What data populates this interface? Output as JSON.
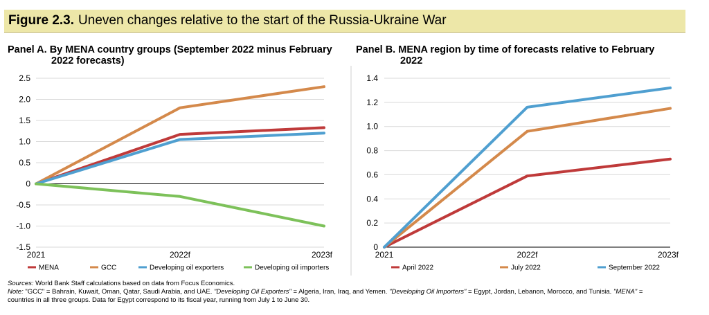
{
  "figure": {
    "label": "Figure 2.3.",
    "title": "Uneven changes relative to the start of the Russia-Ukraine War"
  },
  "colors": {
    "red": "#bf3a3a",
    "orange": "#d4894b",
    "blue": "#4f9fd0",
    "green": "#7dc15a",
    "title_bg": "#ede7a8"
  },
  "chart_data": [
    {
      "type": "line",
      "panel_title_line1": "Panel A. By MENA country groups (September 2022 minus February",
      "panel_title_line2": "2022 forecasts)",
      "categories": [
        "2021",
        "2022f",
        "2023f"
      ],
      "ylim": [
        -1.5,
        2.5
      ],
      "yticks": [
        "2.5",
        "2.0",
        "1.5",
        "1.0",
        "0.5",
        "0",
        "-0.5",
        "-1.0",
        "-1.5"
      ],
      "ytick_values": [
        2.5,
        2.0,
        1.5,
        1.0,
        0.5,
        0,
        -0.5,
        -1.0,
        -1.5
      ],
      "grid": true,
      "legend_position": "bottom",
      "series": [
        {
          "name": "MENA",
          "color": "#bf3a3a",
          "values": [
            0,
            1.17,
            1.33
          ]
        },
        {
          "name": "GCC",
          "color": "#d4894b",
          "values": [
            0,
            1.8,
            2.3
          ]
        },
        {
          "name": "Developing oil exporters",
          "color": "#4f9fd0",
          "values": [
            0,
            1.05,
            1.2
          ]
        },
        {
          "name": "Developing oil importers",
          "color": "#7dc15a",
          "values": [
            0,
            -0.3,
            -1.0
          ]
        }
      ]
    },
    {
      "type": "line",
      "panel_title_line1": "Panel B. MENA region by time of forecasts relative to February",
      "panel_title_line2": "2022",
      "categories": [
        "2021",
        "2022f",
        "2023f"
      ],
      "ylim": [
        0,
        1.4
      ],
      "yticks": [
        "1.4",
        "1.2",
        "1.0",
        "0.8",
        "0.6",
        "0.4",
        "0.2",
        "0"
      ],
      "ytick_values": [
        1.4,
        1.2,
        1.0,
        0.8,
        0.6,
        0.4,
        0.2,
        0
      ],
      "grid": true,
      "legend_position": "bottom",
      "series": [
        {
          "name": "April 2022",
          "color": "#bf3a3a",
          "values": [
            0,
            0.59,
            0.73
          ]
        },
        {
          "name": "July 2022",
          "color": "#d4894b",
          "values": [
            0,
            0.96,
            1.15
          ]
        },
        {
          "name": "September 2022",
          "color": "#4f9fd0",
          "values": [
            0,
            1.16,
            1.32
          ]
        }
      ]
    }
  ],
  "notes": {
    "sources_label": "Sources:",
    "sources_text": "World Bank Staff calculations based on data from Focus Economics.",
    "note_label": "Note:",
    "note_text_1": "\"GCC\" = Bahrain, Kuwait, Oman, Qatar, Saudi Arabia, and UAE.",
    "note_italic_1": "\"Developing Oil Exporters\"",
    "note_text_2": "= Algeria, Iran, Iraq, and Yemen.",
    "note_italic_2": "\"Developing Oil Importers\"",
    "note_text_3": "= Egypt, Jordan, Lebanon, Morocco, and Tunisia.",
    "note_italic_3": "\"MENA\"",
    "note_text_4": "=",
    "note_line2": "countries in all three groups. Data for Egypt correspond to its fiscal year, running from July 1 to June 30."
  }
}
